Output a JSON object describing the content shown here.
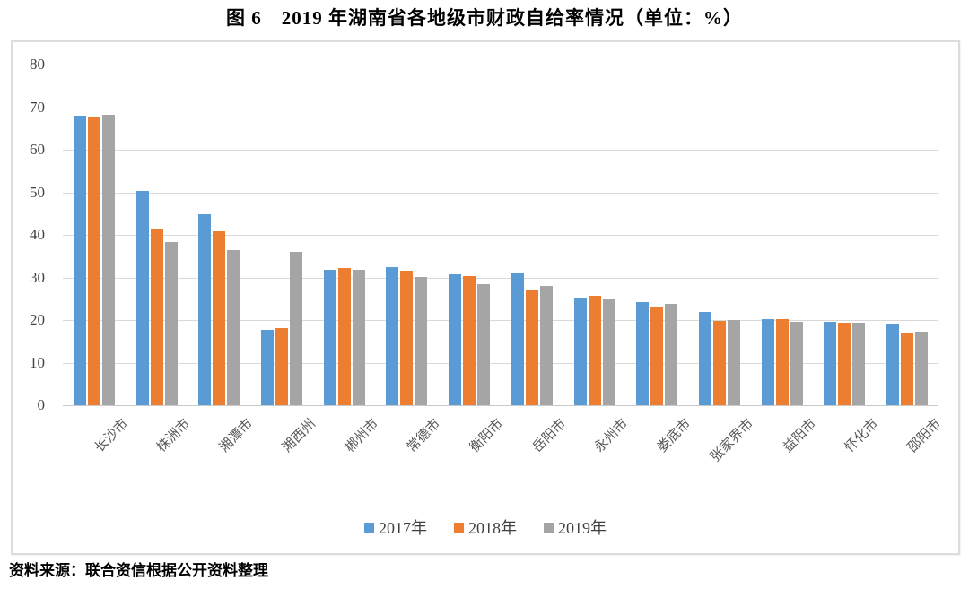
{
  "page": {
    "title": "图 6　2019 年湖南省各地级市财政自给率情况（单位：%）",
    "source_note": "资料来源：联合资信根据公开资料整理"
  },
  "chart_data": {
    "type": "bar",
    "title": "图 6　2019 年湖南省各地级市财政自给率情况（单位：%）",
    "unit": "%",
    "categories": [
      "长沙市",
      "株洲市",
      "湘潭市",
      "湘西州",
      "郴州市",
      "常德市",
      "衡阳市",
      "岳阳市",
      "永州市",
      "娄底市",
      "张家界市",
      "益阳市",
      "怀化市",
      "邵阳市"
    ],
    "series": [
      {
        "name": "2017年",
        "color": "#5B9BD5",
        "values": [
          68.0,
          50.3,
          44.9,
          17.7,
          31.8,
          32.5,
          30.7,
          31.1,
          25.3,
          24.3,
          21.8,
          20.2,
          19.6,
          19.1
        ]
      },
      {
        "name": "2018年",
        "color": "#ED7D31",
        "values": [
          67.5,
          41.4,
          40.9,
          18.1,
          32.3,
          31.6,
          30.4,
          27.2,
          25.8,
          23.2,
          19.7,
          20.2,
          19.4,
          16.8
        ]
      },
      {
        "name": "2019年",
        "color": "#A5A5A5",
        "values": [
          68.3,
          38.4,
          36.4,
          36.1,
          31.7,
          30.2,
          28.4,
          28.1,
          25.1,
          23.9,
          20.0,
          19.6,
          19.3,
          17.3
        ]
      }
    ],
    "xlabel": "",
    "ylabel": "",
    "ylim": [
      0,
      80
    ],
    "yticks": [
      0,
      10,
      20,
      30,
      40,
      50,
      60,
      70,
      80
    ],
    "grid": true,
    "legend_position": "bottom",
    "gridline_color": "#D9D9D9",
    "axis_line_color": "#C9C9C9",
    "axis_text_color": "#404040",
    "category_text_color": "#595959",
    "frame_border_color": "#DCDCDC"
  }
}
